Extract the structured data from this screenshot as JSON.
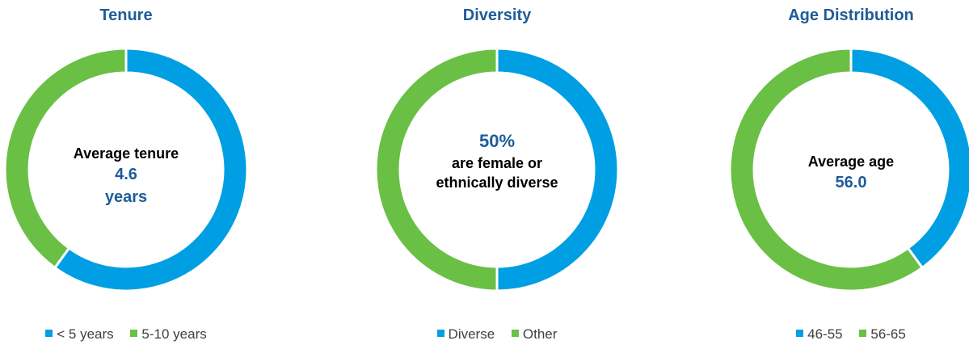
{
  "chart_data": [
    {
      "type": "pie",
      "title": "Tenure",
      "categories": [
        "< 5 years",
        "5-10 years"
      ],
      "values": [
        60,
        40
      ],
      "colors": [
        "#009fe3",
        "#6abf45"
      ],
      "center": {
        "line1": "Average tenure",
        "line2": "4.6",
        "line3": "years"
      }
    },
    {
      "type": "pie",
      "title": "Diversity",
      "categories": [
        "Diverse",
        "Other"
      ],
      "values": [
        50,
        50
      ],
      "colors": [
        "#009fe3",
        "#6abf45"
      ],
      "center": {
        "line1": "50%",
        "line2": "are female or",
        "line3": "ethnically diverse"
      }
    },
    {
      "type": "pie",
      "title": "Age Distribution",
      "categories": [
        "46-55",
        "56-65"
      ],
      "values": [
        40,
        60
      ],
      "colors": [
        "#009fe3",
        "#6abf45"
      ],
      "center": {
        "line1": "Average age",
        "line2": "56.0"
      }
    }
  ]
}
